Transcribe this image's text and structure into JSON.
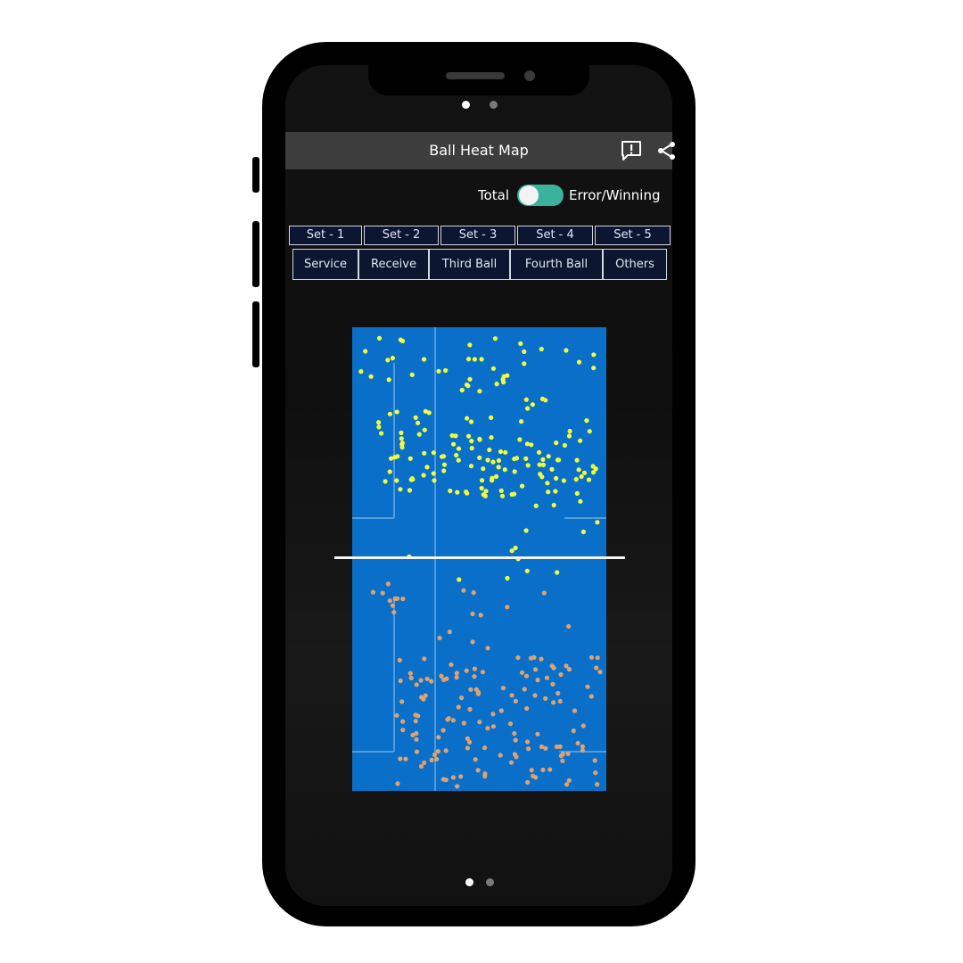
{
  "app": {
    "title": "Ball Heat Map",
    "icons": [
      "report-icon",
      "share-icon"
    ]
  },
  "view_toggle": {
    "left_label": "Total",
    "right_label": "Error/Winning",
    "accent_color": "#3bb39c"
  },
  "set_tabs": [
    "Set - 1",
    "Set - 2",
    "Set - 3",
    "Set - 4",
    "Set - 5"
  ],
  "shot_tabs": [
    "Service",
    "Receive",
    "Third Ball",
    "Fourth Ball",
    "Others"
  ],
  "pager": {
    "pages": 2,
    "active_page": 1
  },
  "colors": {
    "court": "#0a6fc9",
    "court_lines": "#7fb6e8",
    "net": "#f5f5f5",
    "top_points": "#f2ff3c",
    "bottom_points": "#e0a26f",
    "tab_bg": "#0c1630",
    "appbar": "#3d3d3d"
  }
}
